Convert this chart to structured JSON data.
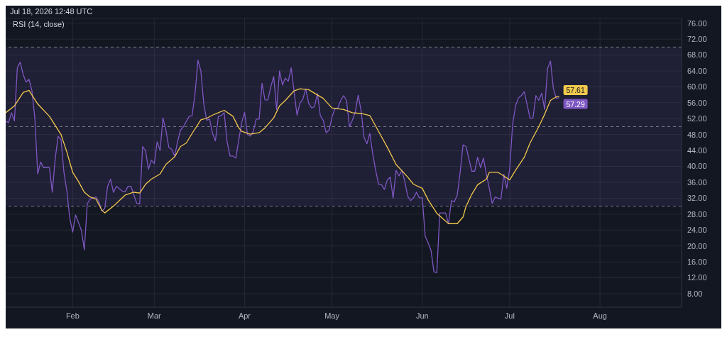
{
  "chart_data": {
    "type": "line",
    "title": "RSI (14, close)",
    "annotations": [
      "Jul 18, 2026 12:48 UTC",
      {
        "text": "57.29",
        "x": "2026-07-18",
        "y": 57.3
      },
      {
        "text": "57.61",
        "x": "2026-07-18",
        "y": 57.6
      }
    ],
    "series": [
      {
        "color": "#7e57c2",
        "x": [
          "2026-01-09",
          "2026-01-10",
          "2026-01-11",
          "2026-01-12",
          "2026-01-13",
          "2026-01-14",
          "2026-01-15",
          "2026-01-16",
          "2026-01-17",
          "2026-01-18",
          "2026-01-19",
          "2026-01-20",
          "2026-01-21",
          "2026-01-22",
          "2026-01-24",
          "2026-01-25",
          "2026-01-26",
          "2026-01-27",
          "2026-01-28",
          "2026-01-29",
          "2026-01-30",
          "2026-01-31",
          "2026-02-01",
          "2026-02-02",
          "2026-02-04",
          "2026-02-05",
          "2026-02-06",
          "2026-02-07",
          "2026-02-09",
          "2026-02-10",
          "2026-02-11",
          "2026-02-12",
          "2026-02-13",
          "2026-02-14",
          "2026-02-15",
          "2026-02-16",
          "2026-02-18",
          "2026-02-19",
          "2026-02-20",
          "2026-02-21",
          "2026-02-23",
          "2026-02-24",
          "2026-02-25",
          "2026-02-26",
          "2026-02-27",
          "2026-02-28",
          "2026-03-01",
          "2026-03-02",
          "2026-03-03",
          "2026-03-04",
          "2026-03-05",
          "2026-03-06",
          "2026-03-07",
          "2026-03-08",
          "2026-03-09",
          "2026-03-10",
          "2026-03-11",
          "2026-03-13",
          "2026-03-14",
          "2026-03-15",
          "2026-03-16",
          "2026-03-17",
          "2026-03-18",
          "2026-03-19",
          "2026-03-20",
          "2026-03-21",
          "2026-03-22",
          "2026-03-23",
          "2026-03-24",
          "2026-03-25",
          "2026-03-26",
          "2026-03-27",
          "2026-03-28",
          "2026-03-29",
          "2026-03-30",
          "2026-03-31",
          "2026-04-01",
          "2026-04-02",
          "2026-04-03",
          "2026-04-04",
          "2026-04-05",
          "2026-04-06",
          "2026-04-07",
          "2026-04-08",
          "2026-04-09",
          "2026-04-10",
          "2026-04-11",
          "2026-04-12",
          "2026-04-13",
          "2026-04-14",
          "2026-04-15",
          "2026-04-16",
          "2026-04-17",
          "2026-04-18",
          "2026-04-19",
          "2026-04-20",
          "2026-04-21",
          "2026-04-22",
          "2026-04-23",
          "2026-04-24",
          "2026-04-25",
          "2026-04-26",
          "2026-04-27",
          "2026-04-28",
          "2026-04-29",
          "2026-04-30",
          "2026-05-01",
          "2026-05-02",
          "2026-05-03",
          "2026-05-04",
          "2026-05-05",
          "2026-05-06",
          "2026-05-07",
          "2026-05-08",
          "2026-05-09",
          "2026-05-10",
          "2026-05-11",
          "2026-05-12",
          "2026-05-13",
          "2026-05-14",
          "2026-05-15",
          "2026-05-16",
          "2026-05-17",
          "2026-05-18",
          "2026-05-19",
          "2026-05-20",
          "2026-05-21",
          "2026-05-22",
          "2026-05-23",
          "2026-05-24",
          "2026-05-25",
          "2026-05-26",
          "2026-05-27",
          "2026-05-28",
          "2026-05-29",
          "2026-05-30",
          "2026-05-31",
          "2026-06-01",
          "2026-06-02",
          "2026-06-03",
          "2026-06-04",
          "2026-06-05",
          "2026-06-06",
          "2026-06-07",
          "2026-06-08",
          "2026-06-09",
          "2026-06-10",
          "2026-06-11",
          "2026-06-12",
          "2026-06-13",
          "2026-06-14",
          "2026-06-15",
          "2026-06-16",
          "2026-06-17",
          "2026-06-18",
          "2026-06-19",
          "2026-06-20",
          "2026-06-21",
          "2026-06-22",
          "2026-06-23",
          "2026-06-24",
          "2026-06-25",
          "2026-06-26",
          "2026-06-27",
          "2026-06-28",
          "2026-06-29",
          "2026-06-30",
          "2026-07-01",
          "2026-07-02",
          "2026-07-03",
          "2026-07-04",
          "2026-07-05",
          "2026-07-06",
          "2026-07-08",
          "2026-07-09",
          "2026-07-10",
          "2026-07-11",
          "2026-07-12",
          "2026-07-13",
          "2026-07-14",
          "2026-07-15",
          "2026-07-16",
          "2026-07-17",
          "2026-07-18"
        ],
        "values": [
          51.4,
          51,
          53.5,
          51.4,
          64.8,
          66.2,
          63.1,
          61.2,
          61.9,
          59.1,
          52.2,
          38.1,
          41.1,
          39.7,
          39.7,
          33.5,
          41.9,
          47.6,
          46.7,
          38.5,
          33.8,
          27,
          23.5,
          27.8,
          23.9,
          19,
          30.6,
          31.8,
          32.3,
          31.1,
          28.8,
          29.4,
          35,
          36.8,
          33.5,
          35,
          33.8,
          33.6,
          35,
          35,
          30.7,
          30.6,
          45,
          44,
          39.3,
          41.6,
          40.7,
          46.2,
          44,
          52.2,
          49.1,
          44.8,
          44.3,
          42.6,
          46.2,
          49.1,
          50,
          52.6,
          52.8,
          58.3,
          66.7,
          64,
          55.7,
          51.6,
          51.9,
          48.3,
          46.4,
          52.6,
          52.8,
          53.5,
          46.2,
          42.6,
          42.6,
          42.1,
          46.6,
          51,
          53.6,
          48,
          47.6,
          48.8,
          51.9,
          51.9,
          60.9,
          56.7,
          56.7,
          60,
          62.6,
          54.3,
          64,
          60.5,
          62.2,
          61.4,
          64.8,
          58.8,
          52.9,
          55.9,
          56.9,
          59.5,
          55.9,
          54.7,
          55,
          58.3,
          52.8,
          51.6,
          48.5,
          49.1,
          52.4,
          54.5,
          54.7,
          56.6,
          57.8,
          56.6,
          50,
          51.6,
          53.6,
          57.9,
          54,
          47.3,
          45.7,
          48.3,
          43.1,
          39,
          35.5,
          35.4,
          34.2,
          36.6,
          37.3,
          32,
          39,
          37.6,
          39,
          36.2,
          32.5,
          31.4,
          32.1,
          33.5,
          32.1,
          32.1,
          22.5,
          20.8,
          18.9,
          13.5,
          13.3,
          28.3,
          28.3,
          28.3,
          25.6,
          31.4,
          31.1,
          32.8,
          38.5,
          45.4,
          45,
          41.9,
          38.8,
          38.8,
          42.3,
          39.7,
          42.1,
          38,
          34.5,
          30.7,
          32.3,
          32,
          31.8,
          38,
          34.5,
          39.3,
          50.5,
          55.2,
          57.2,
          57.8,
          58.8,
          52.1,
          52.2,
          57.8,
          56.6,
          58.4,
          54.3,
          64.6,
          66.5,
          59.6,
          57.1,
          57.3
        ]
      },
      {
        "color": "#f2c94c",
        "x": [
          "2026-01-09",
          "2026-01-12",
          "2026-01-15",
          "2026-01-17",
          "2026-01-20",
          "2026-01-24",
          "2026-01-28",
          "2026-01-30",
          "2026-02-01",
          "2026-02-03",
          "2026-02-05",
          "2026-02-07",
          "2026-02-09",
          "2026-02-11",
          "2026-02-12",
          "2026-02-15",
          "2026-02-19",
          "2026-02-22",
          "2026-02-24",
          "2026-02-26",
          "2026-02-28",
          "2026-03-03",
          "2026-03-05",
          "2026-03-08",
          "2026-03-10",
          "2026-03-12",
          "2026-03-14",
          "2026-03-17",
          "2026-03-19",
          "2026-03-21",
          "2026-03-23",
          "2026-03-25",
          "2026-03-28",
          "2026-03-30",
          "2026-03-31",
          "2026-04-03",
          "2026-04-06",
          "2026-04-08",
          "2026-04-11",
          "2026-04-13",
          "2026-04-15",
          "2026-04-18",
          "2026-04-20",
          "2026-04-23",
          "2026-04-25",
          "2026-04-28",
          "2026-05-01",
          "2026-05-05",
          "2026-05-08",
          "2026-05-11",
          "2026-05-14",
          "2026-05-17",
          "2026-05-20",
          "2026-05-23",
          "2026-05-27",
          "2026-05-29",
          "2026-06-01",
          "2026-06-03",
          "2026-06-06",
          "2026-06-10",
          "2026-06-13",
          "2026-06-15",
          "2026-06-16",
          "2026-06-18",
          "2026-06-20",
          "2026-06-23",
          "2026-06-24",
          "2026-06-27",
          "2026-06-29",
          "2026-07-01",
          "2026-07-03",
          "2026-07-06",
          "2026-07-08",
          "2026-07-11",
          "2026-07-13",
          "2026-07-15",
          "2026-07-17",
          "2026-07-18"
        ],
        "values": [
          53.5,
          55.2,
          58.6,
          59.1,
          55.7,
          52.6,
          48,
          43.6,
          38.5,
          36.2,
          33.5,
          32.3,
          31.8,
          29,
          28.3,
          30,
          32.8,
          33.5,
          33.3,
          35.5,
          36.8,
          38.1,
          40.5,
          42.4,
          45,
          45.9,
          48.3,
          51.7,
          52.1,
          52.9,
          53.5,
          54.1,
          52.6,
          49.7,
          48.8,
          48.1,
          48.5,
          49.7,
          52.2,
          55.2,
          56.6,
          59,
          59.5,
          59.3,
          58.4,
          57.1,
          54.7,
          54.3,
          53.5,
          53.3,
          52.8,
          48.8,
          44.8,
          40.5,
          37.3,
          35.5,
          34.5,
          31.6,
          28.2,
          25.6,
          25.6,
          27.3,
          29.9,
          33,
          35.4,
          36.8,
          38.5,
          38.5,
          37.6,
          36.6,
          39,
          42.3,
          45.9,
          50,
          53.1,
          56.6,
          57.5,
          57.6
        ]
      }
    ],
    "xlim": [
      "2026-01-09",
      "2026-08-29"
    ],
    "xticks": [
      {
        "value": "2026-02-01",
        "label": "Feb"
      },
      {
        "value": "2026-03-01",
        "label": "Mar"
      },
      {
        "value": "2026-04-01",
        "label": "Apr"
      },
      {
        "value": "2026-05-01",
        "label": "May"
      },
      {
        "value": "2026-06-01",
        "label": "Jun"
      },
      {
        "value": "2026-07-01",
        "label": "Jul"
      },
      {
        "value": "2026-08-01",
        "label": "Aug"
      }
    ],
    "ylim": [
      4.6,
      77.2
    ],
    "yticks": [
      {
        "value": 8,
        "label": "8.00"
      },
      {
        "value": 12,
        "label": "12.00"
      },
      {
        "value": 16,
        "label": "16.00"
      },
      {
        "value": 20,
        "label": "20.00"
      },
      {
        "value": 24,
        "label": "24.00"
      },
      {
        "value": 28,
        "label": "28.00"
      },
      {
        "value": 32,
        "label": "32.00"
      },
      {
        "value": 36,
        "label": "36.00"
      },
      {
        "value": 40,
        "label": "40.00"
      },
      {
        "value": 44,
        "label": "44.00"
      },
      {
        "value": 48,
        "label": "48.00"
      },
      {
        "value": 52,
        "label": "52.00"
      },
      {
        "value": 56,
        "label": "56.00"
      },
      {
        "value": 60,
        "label": "60.00"
      },
      {
        "value": 64,
        "label": "64.00"
      },
      {
        "value": 68,
        "label": "68.00"
      },
      {
        "value": 72,
        "label": "72.00"
      },
      {
        "value": 76,
        "label": "76.00"
      }
    ],
    "ref_lines": [
      {
        "axis": "y",
        "value": 70,
        "color": "#787b86",
        "line_style": "dashed"
      },
      {
        "axis": "y",
        "value": 50,
        "color": "#787b86",
        "line_style": "dashed"
      },
      {
        "axis": "y",
        "value": 30,
        "color": "#787b86",
        "line_style": "dashed"
      }
    ],
    "bands": [
      {
        "axis": "y",
        "from": 30,
        "to": 70,
        "color": "#7e57c2"
      }
    ],
    "grid": true,
    "legend": false,
    "marker": "none",
    "line_style": "solid"
  }
}
